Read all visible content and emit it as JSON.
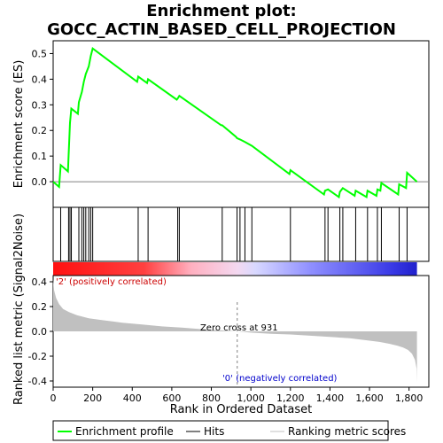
{
  "chart_data": {
    "type": "line",
    "title_line1": "Enrichment plot:",
    "title_line2": "GOCC_ACTIN_BASED_CELL_PROJECTION",
    "xlabel": "Rank in Ordered Dataset",
    "es_ylabel": "Enrichment score (ES)",
    "metric_ylabel": "Ranked list metric (Signal2Noise)",
    "xlim": [
      0,
      1900
    ],
    "es_ylim": [
      -0.1,
      0.55
    ],
    "metric_ylim": [
      -0.45,
      0.45
    ],
    "x_ticks": [
      0,
      200,
      400,
      600,
      800,
      1000,
      1200,
      1400,
      1600,
      1800
    ],
    "x_tick_labels": [
      "0",
      "200",
      "400",
      "600",
      "800",
      "1,000",
      "1,200",
      "1,400",
      "1,600",
      "1,800"
    ],
    "es_ticks": [
      0.0,
      0.1,
      0.2,
      0.3,
      0.4,
      0.5
    ],
    "es_tick_labels": [
      "0.0",
      "0.1",
      "0.2",
      "0.3",
      "0.4",
      "0.5"
    ],
    "metric_ticks": [
      -0.4,
      -0.2,
      0.0,
      0.2,
      0.4
    ],
    "metric_tick_labels": [
      "-0.4",
      "-0.2",
      "0.0",
      "0.2",
      "0.4"
    ],
    "n_genes": 1840,
    "zero_cross": 931,
    "zero_cross_label": "Zero cross at 931",
    "pos_label": "'2' (positively correlated)",
    "neg_label": "'0' (negatively correlated)",
    "hits": [
      38,
      78,
      85,
      92,
      130,
      145,
      155,
      165,
      180,
      190,
      200,
      430,
      480,
      630,
      638,
      855,
      930,
      945,
      970,
      1005,
      1200,
      1375,
      1390,
      1450,
      1465,
      1530,
      1590,
      1640,
      1660,
      1750,
      1790
    ],
    "es_profile": {
      "x": [
        0,
        30,
        38,
        75,
        78,
        85,
        92,
        125,
        130,
        145,
        155,
        165,
        180,
        190,
        200,
        425,
        430,
        475,
        480,
        625,
        630,
        638,
        850,
        855,
        925,
        930,
        945,
        970,
        1005,
        1195,
        1200,
        1370,
        1375,
        1390,
        1445,
        1450,
        1465,
        1525,
        1530,
        1585,
        1590,
        1635,
        1640,
        1655,
        1660,
        1745,
        1750,
        1785,
        1790,
        1840
      ],
      "y": [
        0.0,
        -0.02,
        0.065,
        0.04,
        0.1,
        0.23,
        0.285,
        0.265,
        0.31,
        0.35,
        0.39,
        0.42,
        0.45,
        0.49,
        0.52,
        0.39,
        0.41,
        0.385,
        0.4,
        0.32,
        0.325,
        0.335,
        0.22,
        0.22,
        0.175,
        0.17,
        0.165,
        0.155,
        0.14,
        0.03,
        0.045,
        -0.05,
        -0.035,
        -0.03,
        -0.06,
        -0.04,
        -0.025,
        -0.055,
        -0.035,
        -0.06,
        -0.035,
        -0.055,
        -0.03,
        -0.035,
        -0.005,
        -0.05,
        -0.01,
        -0.025,
        0.035,
        0.0
      ]
    },
    "metric_curve": {
      "x": [
        0,
        5,
        15,
        30,
        50,
        80,
        120,
        180,
        250,
        350,
        450,
        550,
        650,
        750,
        850,
        931,
        1000,
        1100,
        1200,
        1300,
        1400,
        1500,
        1550,
        1600,
        1650,
        1700,
        1740,
        1770,
        1795,
        1815,
        1830,
        1838,
        1840
      ],
      "y": [
        0.42,
        0.33,
        0.27,
        0.22,
        0.18,
        0.155,
        0.13,
        0.105,
        0.09,
        0.07,
        0.055,
        0.04,
        0.03,
        0.018,
        0.008,
        0.0,
        -0.01,
        -0.02,
        -0.025,
        -0.035,
        -0.045,
        -0.055,
        -0.065,
        -0.075,
        -0.085,
        -0.1,
        -0.115,
        -0.13,
        -0.15,
        -0.18,
        -0.23,
        -0.3,
        -0.41
      ]
    },
    "colors": {
      "es_line": "#00ff00",
      "hit": "#000000",
      "metric_fill": "#c0c0c0",
      "pos_text": "#cc0000",
      "neg_text": "#0000cc",
      "zero_line": "#808080",
      "grid": "#a0a0a0"
    },
    "legend": [
      {
        "label": "Enrichment profile",
        "kind": "green-line"
      },
      {
        "label": "Hits",
        "kind": "black-line"
      },
      {
        "label": "Ranking metric scores",
        "kind": "gray-line"
      }
    ],
    "legend_placement": "bottom",
    "grid": false
  }
}
